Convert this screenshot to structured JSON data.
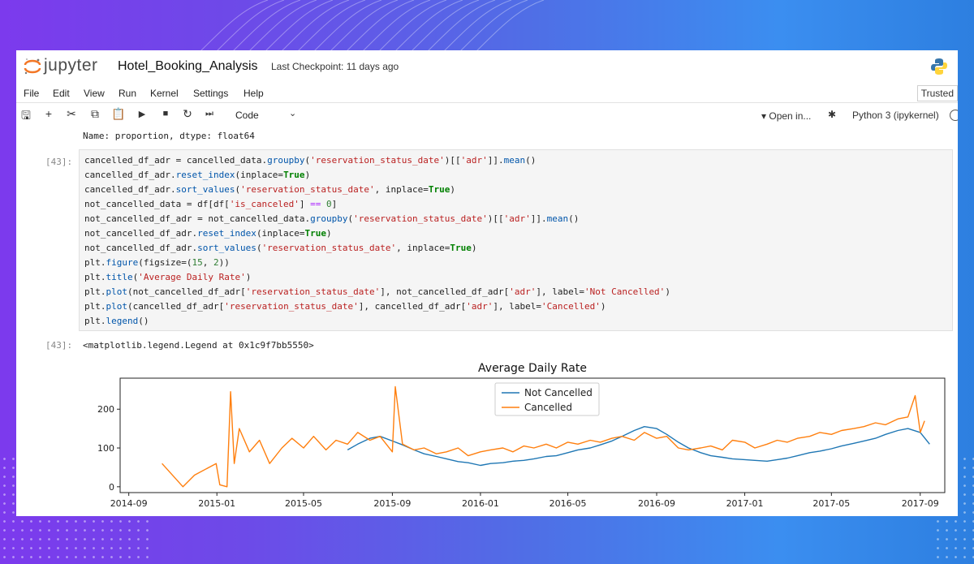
{
  "notebook": {
    "brand": "jupyter",
    "name": "Hotel_Booking_Analysis",
    "checkpoint": "Last Checkpoint: 11 days ago"
  },
  "menu": [
    "File",
    "Edit",
    "View",
    "Run",
    "Kernel",
    "Settings",
    "Help"
  ],
  "trusted": "Trusted",
  "toolbar": {
    "cell_type": "Code",
    "open_in": "▾ Open in...",
    "kernel": "Python 3 (ipykernel)"
  },
  "previous_output": "Name: proportion, dtype: float64",
  "cell": {
    "prompt": "[43]:",
    "output_prompt": "[43]:",
    "output_text": "<matplotlib.legend.Legend at 0x1c9f7bb5550>",
    "code": [
      "cancelled_df_adr = cancelled_data.groupby('reservation_status_date')[['adr']].mean()",
      "cancelled_df_adr.reset_index(inplace=True)",
      "cancelled_df_adr.sort_values('reservation_status_date', inplace=True)",
      "not_cancelled_data = df[df['is_canceled'] == 0]",
      "not_cancelled_df_adr = not_cancelled_data.groupby('reservation_status_date')[['adr']].mean()",
      "not_cancelled_df_adr.reset_index(inplace=True)",
      "not_cancelled_df_adr.sort_values('reservation_status_date', inplace=True)",
      "plt.figure(figsize=(15, 2))",
      "plt.title('Average Daily Rate')",
      "plt.plot(not_cancelled_df_adr['reservation_status_date'], not_cancelled_df_adr['adr'], label='Not Cancelled')",
      "plt.plot(cancelled_df_adr['reservation_status_date'], cancelled_df_adr['adr'], label='Cancelled')",
      "plt.legend()"
    ]
  },
  "colors": {
    "not_cancelled": "#1f77b4",
    "cancelled": "#ff7f0e"
  },
  "chart_data": {
    "type": "line",
    "title": "Average Daily Rate",
    "xlabel": "",
    "ylabel": "",
    "x_ticks": [
      "2014-09",
      "2015-01",
      "2015-05",
      "2015-09",
      "2016-01",
      "2016-05",
      "2016-09",
      "2017-01",
      "2017-05",
      "2017-09"
    ],
    "y_ticks": [
      "0",
      "100",
      "200"
    ],
    "ylim": [
      -15,
      280
    ],
    "xlim": [
      "2014-08-20",
      "2017-10-05"
    ],
    "legend": {
      "position": "top-center",
      "entries": [
        "Not Cancelled",
        "Cancelled"
      ]
    },
    "grid": false,
    "series": [
      {
        "name": "Not Cancelled",
        "x": [
          "2015-07-01",
          "2015-07-15",
          "2015-08-01",
          "2015-08-15",
          "2015-09-01",
          "2015-09-15",
          "2015-10-01",
          "2015-10-15",
          "2015-11-01",
          "2015-11-15",
          "2015-12-01",
          "2015-12-15",
          "2016-01-01",
          "2016-01-15",
          "2016-02-01",
          "2016-02-15",
          "2016-03-01",
          "2016-03-15",
          "2016-04-01",
          "2016-04-15",
          "2016-05-01",
          "2016-05-15",
          "2016-06-01",
          "2016-06-15",
          "2016-07-01",
          "2016-07-15",
          "2016-08-01",
          "2016-08-15",
          "2016-09-01",
          "2016-09-15",
          "2016-10-01",
          "2016-10-15",
          "2016-11-01",
          "2016-11-15",
          "2016-12-01",
          "2016-12-15",
          "2017-01-01",
          "2017-01-15",
          "2017-02-01",
          "2017-02-15",
          "2017-03-01",
          "2017-03-15",
          "2017-04-01",
          "2017-04-15",
          "2017-05-01",
          "2017-05-15",
          "2017-06-01",
          "2017-06-15",
          "2017-07-01",
          "2017-07-15",
          "2017-08-01",
          "2017-08-15",
          "2017-09-01",
          "2017-09-14"
        ],
        "values": [
          95,
          110,
          125,
          130,
          118,
          108,
          95,
          85,
          78,
          72,
          65,
          62,
          55,
          60,
          62,
          66,
          68,
          72,
          78,
          80,
          88,
          95,
          100,
          108,
          118,
          130,
          145,
          155,
          150,
          135,
          115,
          100,
          88,
          80,
          76,
          72,
          70,
          68,
          66,
          70,
          74,
          80,
          88,
          92,
          98,
          105,
          112,
          118,
          125,
          135,
          145,
          150,
          140,
          110
        ]
      },
      {
        "name": "Cancelled",
        "x": [
          "2014-10-17",
          "2014-11-15",
          "2014-12-01",
          "2014-12-31",
          "2015-01-05",
          "2015-01-15",
          "2015-01-20",
          "2015-01-25",
          "2015-02-01",
          "2015-02-15",
          "2015-03-01",
          "2015-03-15",
          "2015-04-01",
          "2015-04-15",
          "2015-05-01",
          "2015-05-15",
          "2015-06-01",
          "2015-06-15",
          "2015-07-01",
          "2015-07-15",
          "2015-08-01",
          "2015-08-15",
          "2015-09-01",
          "2015-09-05",
          "2015-09-15",
          "2015-10-01",
          "2015-10-15",
          "2015-11-01",
          "2015-11-15",
          "2015-12-01",
          "2015-12-15",
          "2016-01-01",
          "2016-01-15",
          "2016-02-01",
          "2016-02-15",
          "2016-03-01",
          "2016-03-15",
          "2016-04-01",
          "2016-04-15",
          "2016-05-01",
          "2016-05-15",
          "2016-06-01",
          "2016-06-15",
          "2016-07-01",
          "2016-07-15",
          "2016-08-01",
          "2016-08-15",
          "2016-09-01",
          "2016-09-15",
          "2016-10-01",
          "2016-10-15",
          "2016-11-01",
          "2016-11-15",
          "2016-12-01",
          "2016-12-15",
          "2017-01-01",
          "2017-01-15",
          "2017-02-01",
          "2017-02-15",
          "2017-03-01",
          "2017-03-15",
          "2017-04-01",
          "2017-04-15",
          "2017-05-01",
          "2017-05-15",
          "2017-06-01",
          "2017-06-15",
          "2017-07-01",
          "2017-07-15",
          "2017-08-01",
          "2017-08-15",
          "2017-08-25",
          "2017-09-01",
          "2017-09-07"
        ],
        "values": [
          60,
          0,
          30,
          60,
          5,
          0,
          245,
          60,
          150,
          90,
          120,
          60,
          100,
          125,
          100,
          130,
          95,
          120,
          110,
          140,
          120,
          130,
          90,
          258,
          110,
          95,
          100,
          85,
          90,
          100,
          80,
          90,
          95,
          100,
          90,
          105,
          100,
          110,
          100,
          115,
          110,
          120,
          115,
          125,
          130,
          120,
          140,
          125,
          130,
          100,
          95,
          100,
          105,
          95,
          120,
          115,
          100,
          110,
          120,
          115,
          125,
          130,
          140,
          135,
          145,
          150,
          155,
          165,
          160,
          175,
          180,
          235,
          140,
          170
        ]
      }
    ]
  }
}
